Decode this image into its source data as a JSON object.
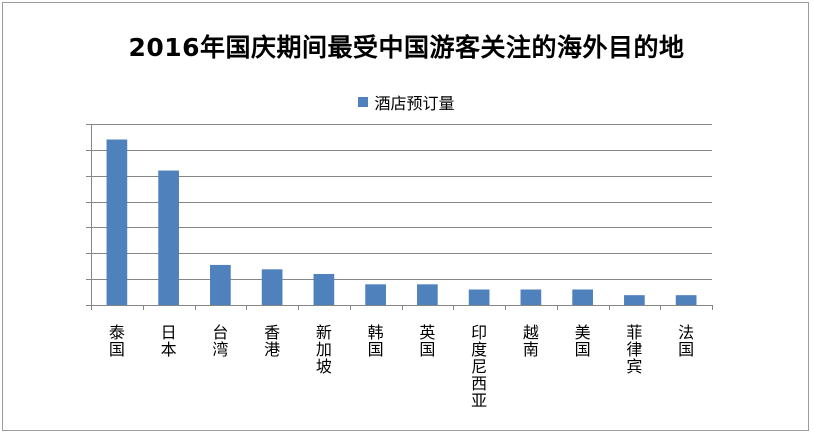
{
  "chart_data": {
    "type": "bar",
    "title": "2016年国庆期间最受中国游客关注的海外目的地",
    "categories": [
      "泰国",
      "日本",
      "台湾",
      "香港",
      "新加坡",
      "韩国",
      "英国",
      "印度尼西亚",
      "越南",
      "美国",
      "菲律宾",
      "法国"
    ],
    "series": [
      {
        "name": "酒店预订量",
        "values": [
          6.4,
          5.2,
          1.55,
          1.38,
          1.2,
          0.8,
          0.8,
          0.6,
          0.6,
          0.6,
          0.38,
          0.38
        ]
      }
    ],
    "ylim": [
      0,
      7
    ],
    "grid": true,
    "legend_position": "top",
    "y_tick_labels_shown": false,
    "colors": {
      "series": "#4f81bd",
      "grid": "#868686",
      "axis": "#868686"
    }
  }
}
